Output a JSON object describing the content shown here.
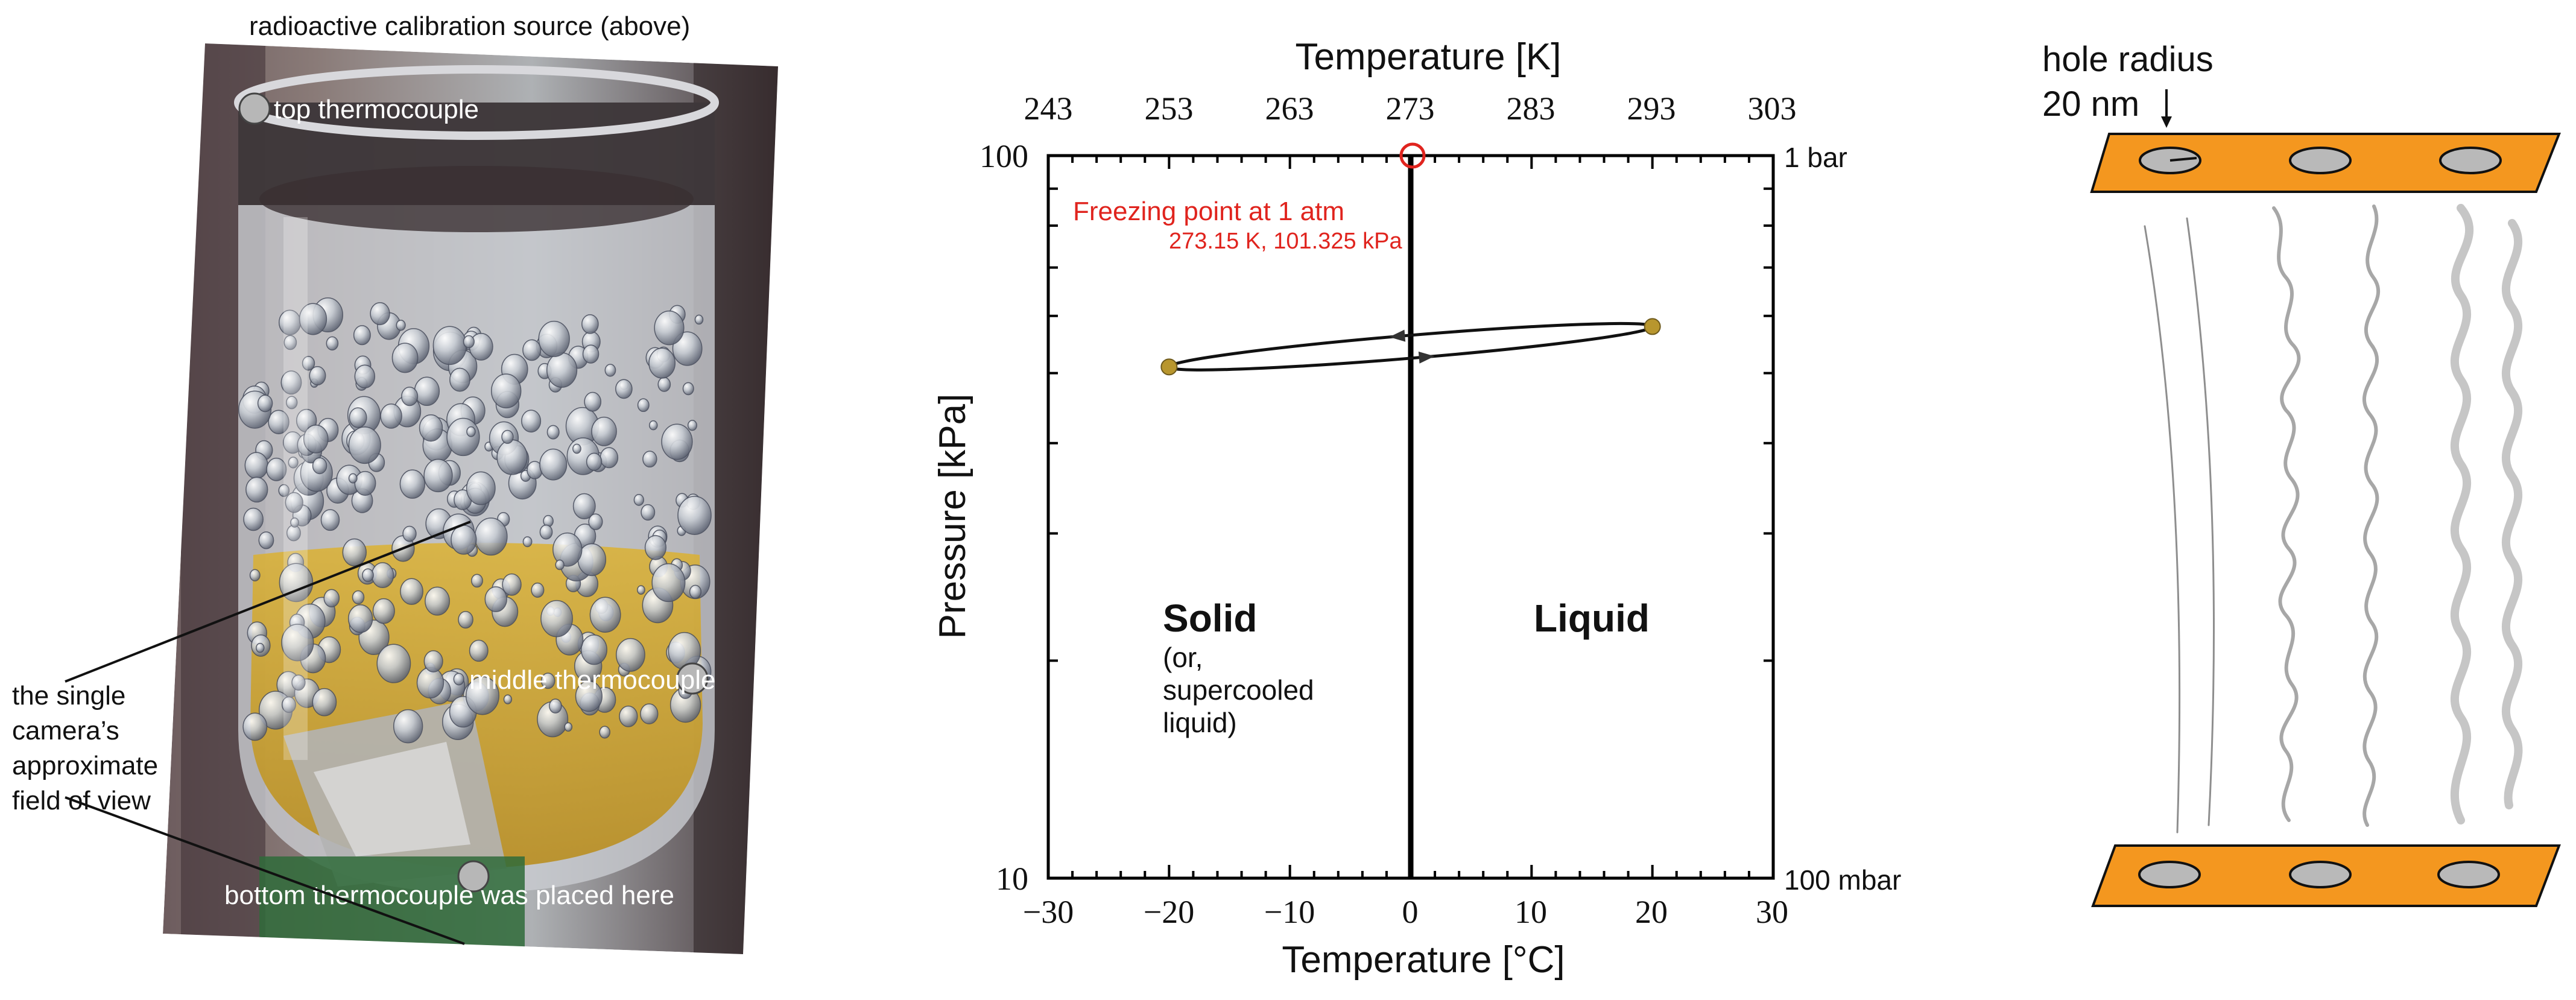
{
  "photo_panel": {
    "top_caption": "radioactive calibration source (above)",
    "labels": {
      "top": "top thermocouple",
      "middle": "middle thermocouple",
      "bottom": "bottom thermocouple was placed here"
    },
    "fov_lines": [
      "the single",
      "camera’s",
      "approximate",
      "field of view"
    ]
  },
  "phase_chart": {
    "top_axis_title": "Temperature [K]",
    "top_ticks": [
      "243",
      "253",
      "263",
      "273",
      "283",
      "293",
      "303"
    ],
    "bottom_axis_title": "Temperature [°C]",
    "bottom_ticks": [
      "−30",
      "−20",
      "−10",
      "0",
      "10",
      "20",
      "30"
    ],
    "y_axis_title": "Pressure [kPa]",
    "y_ticks": [
      "100",
      "10"
    ],
    "right_labels": [
      "1 bar",
      "100 mbar"
    ],
    "freezing_title": "Freezing point at 1 atm",
    "freezing_detail": "273.15 K, 101.325 kPa",
    "solid_label": "Solid",
    "solid_sub": [
      "(or,",
      "supercooled",
      "liquid)"
    ],
    "liquid_label": "Liquid",
    "colors": {
      "annotation": "#e0241e",
      "endpoint": "#b8962e"
    }
  },
  "chart_data": {
    "type": "line",
    "title": "",
    "xlabel": "Temperature [°C]",
    "x2label": "Temperature [K]",
    "ylabel": "Pressure [kPa]",
    "xlim": [
      -30,
      30
    ],
    "ylim": [
      10,
      100
    ],
    "yscale": "log",
    "series": [
      {
        "name": "cycle endpoints",
        "points": [
          {
            "x": -20,
            "y": 51
          },
          {
            "x": 20,
            "y": 58
          }
        ]
      },
      {
        "name": "phase boundary",
        "points": [
          {
            "x": 0,
            "y": 10
          },
          {
            "x": 0,
            "y": 100
          }
        ]
      }
    ],
    "annotations": [
      {
        "x": 0.15,
        "y": 101.325,
        "text": "Freezing point at 1 atm"
      }
    ]
  },
  "nano_panel": {
    "hole_label_lines": [
      "hole radius",
      "20 nm"
    ],
    "colors": {
      "plate": "#f4971f",
      "hole": "#b9b9b9"
    }
  }
}
